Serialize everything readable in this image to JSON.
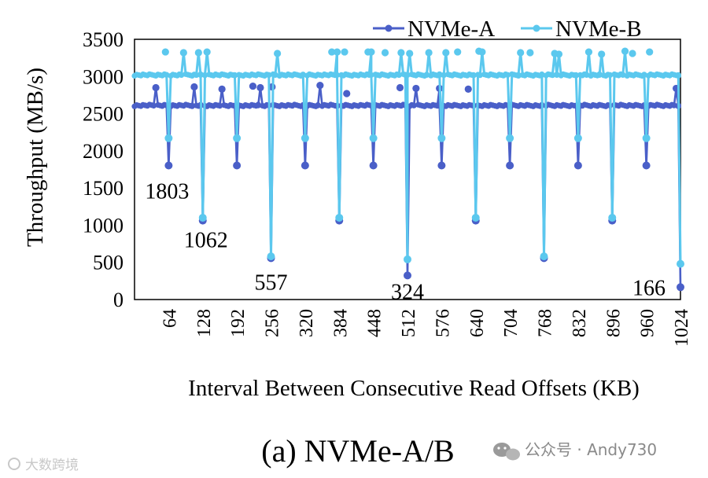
{
  "chart_data": {
    "type": "line",
    "xlabel": "Interval Between Consecutive Read Offsets (KB)",
    "ylabel": "Throughput (MB/s)",
    "xlim": [
      0,
      1024
    ],
    "ylim": [
      0,
      3500
    ],
    "x_ticks": [
      64,
      128,
      192,
      256,
      320,
      384,
      448,
      512,
      576,
      640,
      704,
      768,
      832,
      896,
      960,
      1024
    ],
    "y_ticks": [
      0,
      500,
      1000,
      1500,
      2000,
      2500,
      3000,
      3500
    ],
    "grid": false,
    "legend_position": "top-right",
    "series": [
      {
        "name": "NVMe-A",
        "color": "#4a5fc8",
        "base": 2610,
        "dips": [
          [
            64,
            1803
          ],
          [
            128,
            1062
          ],
          [
            192,
            1803
          ],
          [
            256,
            557
          ],
          [
            320,
            1803
          ],
          [
            384,
            1062
          ],
          [
            448,
            1803
          ],
          [
            512,
            324
          ],
          [
            576,
            1803
          ],
          [
            640,
            1062
          ],
          [
            704,
            1803
          ],
          [
            768,
            557
          ],
          [
            832,
            1803
          ],
          [
            896,
            1062
          ],
          [
            960,
            1803
          ],
          [
            1024,
            166
          ]
        ],
        "peaks": [
          [
            40,
            2850
          ],
          [
            112,
            2860
          ],
          [
            164,
            2830
          ],
          [
            222,
            2870
          ],
          [
            236,
            2850
          ],
          [
            258,
            2860
          ],
          [
            348,
            2880
          ],
          [
            398,
            2770
          ],
          [
            498,
            2850
          ],
          [
            528,
            2840
          ],
          [
            572,
            2840
          ],
          [
            626,
            2830
          ],
          [
            1016,
            2840
          ]
        ]
      },
      {
        "name": "NVMe-B",
        "color": "#5bc8ee",
        "base": 3020,
        "dips": [
          [
            64,
            2170
          ],
          [
            128,
            1100
          ],
          [
            192,
            2170
          ],
          [
            256,
            580
          ],
          [
            320,
            2170
          ],
          [
            384,
            1100
          ],
          [
            448,
            2170
          ],
          [
            512,
            540
          ],
          [
            576,
            2170
          ],
          [
            640,
            1100
          ],
          [
            704,
            2170
          ],
          [
            768,
            580
          ],
          [
            832,
            2170
          ],
          [
            896,
            1100
          ],
          [
            960,
            2170
          ],
          [
            1024,
            480
          ]
        ],
        "peaks": [
          [
            58,
            3330
          ],
          [
            92,
            3320
          ],
          [
            120,
            3320
          ],
          [
            136,
            3330
          ],
          [
            268,
            3310
          ],
          [
            370,
            3330
          ],
          [
            380,
            3330
          ],
          [
            394,
            3330
          ],
          [
            438,
            3330
          ],
          [
            444,
            3330
          ],
          [
            470,
            3320
          ],
          [
            500,
            3320
          ],
          [
            516,
            3310
          ],
          [
            552,
            3320
          ],
          [
            584,
            3320
          ],
          [
            606,
            3330
          ],
          [
            646,
            3340
          ],
          [
            652,
            3330
          ],
          [
            724,
            3320
          ],
          [
            742,
            3320
          ],
          [
            788,
            3310
          ],
          [
            796,
            3300
          ],
          [
            852,
            3330
          ],
          [
            876,
            3300
          ],
          [
            920,
            3340
          ],
          [
            934,
            3310
          ],
          [
            966,
            3330
          ]
        ]
      }
    ],
    "annotations": [
      {
        "text": "1803",
        "x": 64,
        "y": 1803
      },
      {
        "text": "1062",
        "x": 128,
        "y": 1062
      },
      {
        "text": "557",
        "x": 256,
        "y": 557
      },
      {
        "text": "324",
        "x": 512,
        "y": 324
      },
      {
        "text": "166",
        "x": 1024,
        "y": 166
      }
    ]
  },
  "caption": "(a) NVMe-A/B",
  "watermark": {
    "right": "公众号 · Andy730",
    "left": "大数跨境"
  }
}
